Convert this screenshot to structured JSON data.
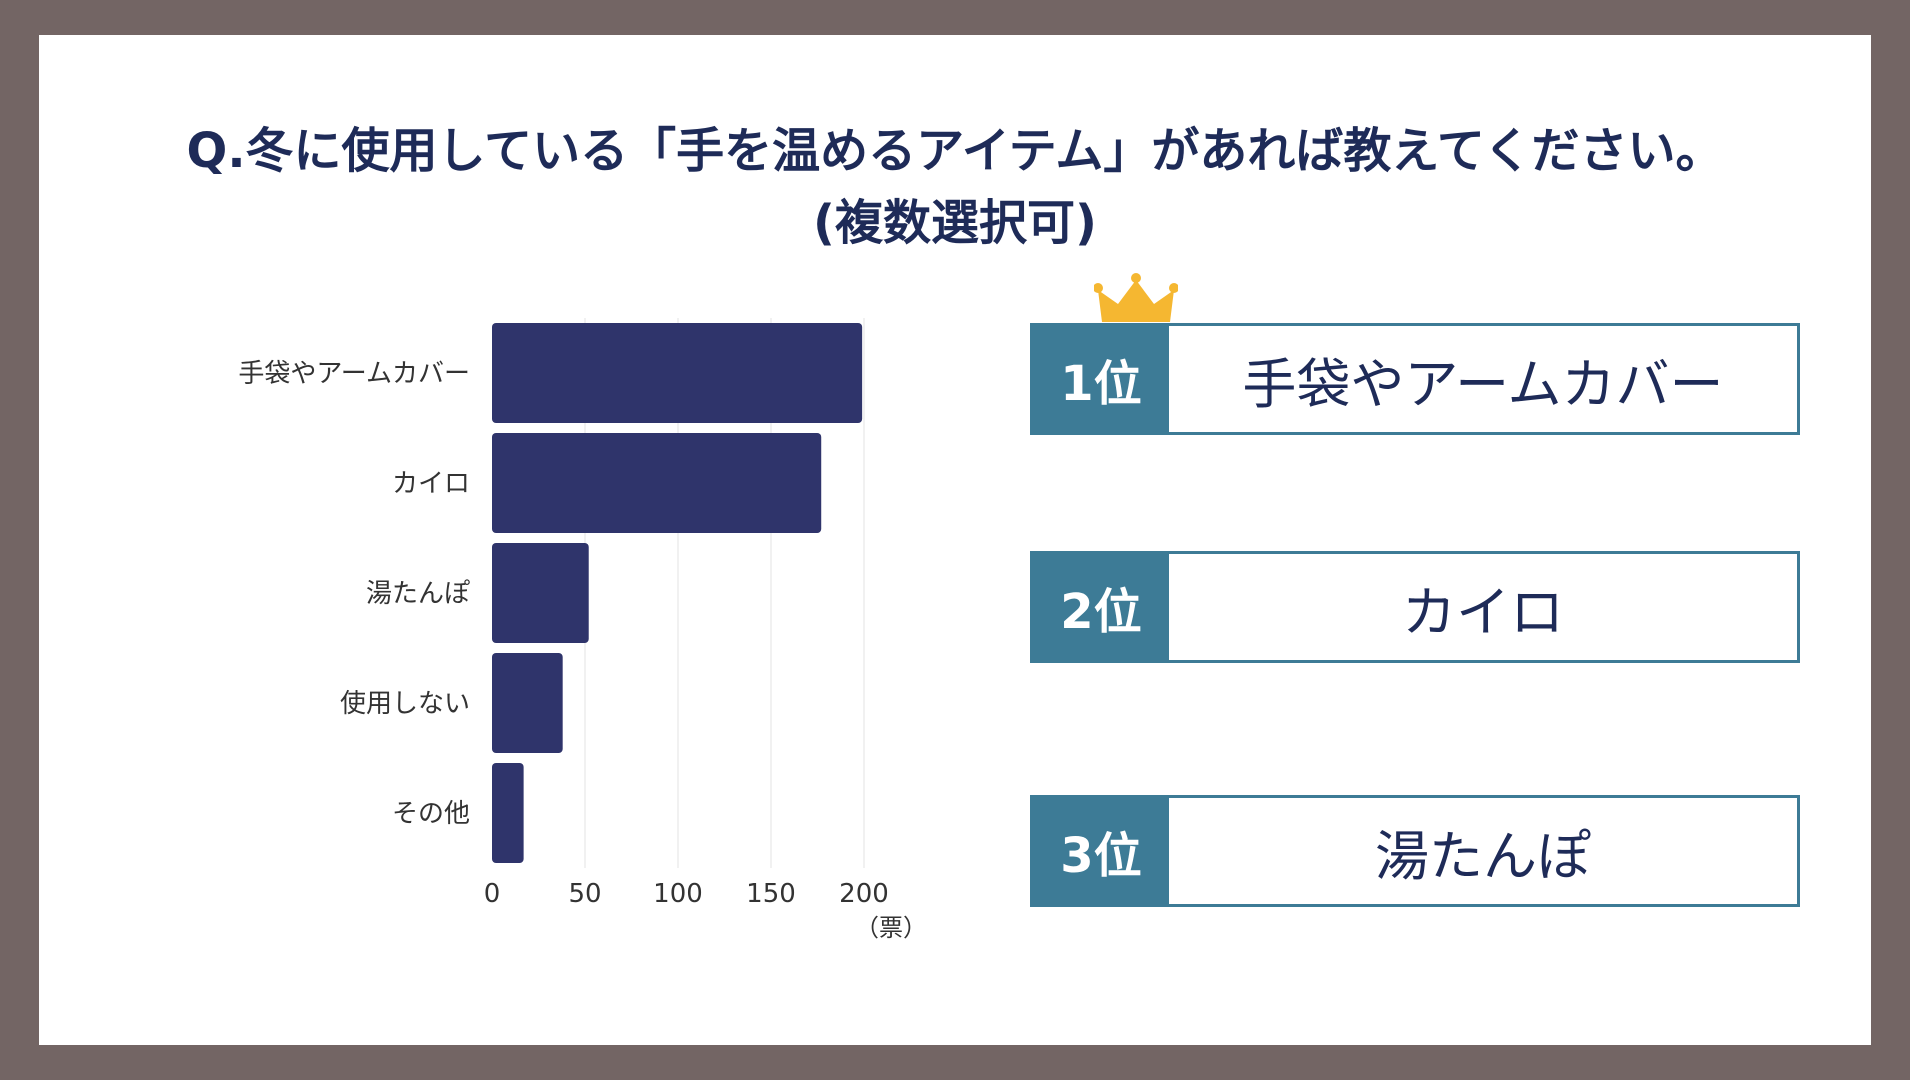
{
  "title": {
    "line1": "Q.冬に使用している「手を温めるアイテム」があれば教えてください。",
    "line2": "(複数選択可)"
  },
  "chart_data": {
    "type": "bar",
    "orientation": "horizontal",
    "categories": [
      "手袋やアームカバー",
      "カイロ",
      "湯たんぽ",
      "使用しない",
      "その他"
    ],
    "values": [
      199,
      177,
      52,
      38,
      17
    ],
    "xticks": [
      "0",
      "50",
      "100",
      "150",
      "200"
    ],
    "xlim": [
      0,
      200
    ],
    "unit": "（票）",
    "grid": true,
    "bar_color": "#2f346b"
  },
  "ranking": [
    {
      "rank": "1位",
      "label": "手袋やアームカバー"
    },
    {
      "rank": "2位",
      "label": "カイロ"
    },
    {
      "rank": "3位",
      "label": "湯たんぽ"
    }
  ],
  "colors": {
    "frame": "#736564",
    "title": "#1e2b58",
    "rank_accent": "#3d7b96",
    "crown": "#f5b731"
  }
}
